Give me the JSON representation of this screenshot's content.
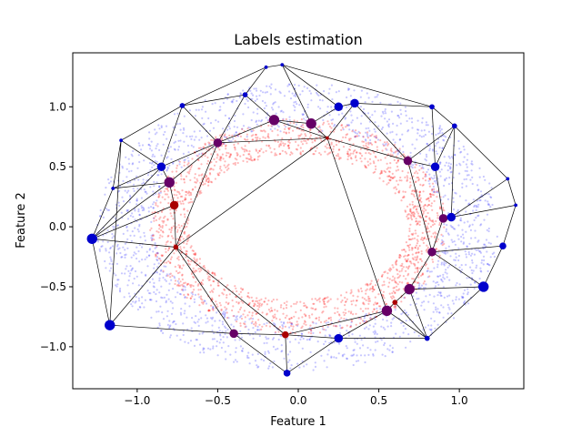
{
  "chart_data": {
    "type": "scatter",
    "title": "Labels estimation",
    "xlabel": "Feature 1",
    "ylabel": "Feature 2",
    "xlim": [
      -1.4,
      1.4
    ],
    "ylim": [
      -1.35,
      1.45
    ],
    "xticks": [
      -1.0,
      -0.5,
      0.0,
      0.5,
      1.0
    ],
    "xtick_labels": [
      "−1.0",
      "−0.5",
      "0.0",
      "0.5",
      "1.0"
    ],
    "yticks": [
      -1.0,
      -0.5,
      0.0,
      0.5,
      1.0
    ],
    "ytick_labels": [
      "−1.0",
      "−0.5",
      "0.0",
      "0.5",
      "1.0"
    ],
    "grid": false,
    "colors": {
      "outer_class": "#0000ff",
      "inner_class": "#ff0000",
      "edges": "#000000"
    },
    "point_clouds": [
      {
        "class": "outer",
        "color": "#0000ff",
        "shape": "ring",
        "center": [
          0.0,
          0.0
        ],
        "radius_x": [
          0.9,
          1.25
        ],
        "radius_y": [
          0.8,
          1.2
        ],
        "count": 1800,
        "alpha": 0.22
      },
      {
        "class": "inner",
        "color": "#ff0000",
        "shape": "ring",
        "center": [
          0.0,
          0.0
        ],
        "radius_x": [
          0.68,
          0.92
        ],
        "radius_y": [
          0.6,
          0.9
        ],
        "count": 1800,
        "alpha": 0.28
      }
    ],
    "nodes": [
      {
        "x": -1.28,
        "y": -0.1,
        "label": "outer",
        "size": 6
      },
      {
        "x": -1.17,
        "y": -0.82,
        "label": "outer",
        "size": 6
      },
      {
        "x": -1.1,
        "y": 0.72,
        "label": "outer",
        "size": 2
      },
      {
        "x": -1.15,
        "y": 0.32,
        "label": "outer",
        "size": 2
      },
      {
        "x": -0.85,
        "y": 0.5,
        "label": "outer",
        "size": 5
      },
      {
        "x": -0.8,
        "y": 0.37,
        "label": "mixed",
        "size": 6
      },
      {
        "x": -0.77,
        "y": 0.18,
        "label": "inner",
        "size": 5
      },
      {
        "x": -0.76,
        "y": -0.17,
        "label": "inner",
        "size": 3
      },
      {
        "x": -0.72,
        "y": 1.01,
        "label": "outer",
        "size": 3
      },
      {
        "x": -0.5,
        "y": 0.7,
        "label": "mixed",
        "size": 5
      },
      {
        "x": -0.4,
        "y": -0.89,
        "label": "mixed",
        "size": 5
      },
      {
        "x": -0.33,
        "y": 1.1,
        "label": "outer",
        "size": 3
      },
      {
        "x": -0.2,
        "y": 1.33,
        "label": "outer",
        "size": 2
      },
      {
        "x": -0.15,
        "y": 0.89,
        "label": "mixed",
        "size": 6
      },
      {
        "x": -0.1,
        "y": 1.35,
        "label": "outer",
        "size": 2
      },
      {
        "x": -0.08,
        "y": -0.9,
        "label": "inner",
        "size": 4
      },
      {
        "x": -0.07,
        "y": -1.22,
        "label": "outer",
        "size": 4
      },
      {
        "x": 0.08,
        "y": 0.86,
        "label": "mixed",
        "size": 6
      },
      {
        "x": 0.18,
        "y": 0.74,
        "label": "inner",
        "size": 2
      },
      {
        "x": 0.25,
        "y": 1.0,
        "label": "outer",
        "size": 5
      },
      {
        "x": 0.25,
        "y": -0.93,
        "label": "outer",
        "size": 5
      },
      {
        "x": 0.35,
        "y": 1.03,
        "label": "outer",
        "size": 5
      },
      {
        "x": 0.55,
        "y": -0.7,
        "label": "mixed",
        "size": 6
      },
      {
        "x": 0.6,
        "y": -0.63,
        "label": "inner",
        "size": 3
      },
      {
        "x": 0.68,
        "y": 0.55,
        "label": "mixed",
        "size": 5
      },
      {
        "x": 0.69,
        "y": -0.52,
        "label": "mixed",
        "size": 6
      },
      {
        "x": 0.8,
        "y": -0.93,
        "label": "outer",
        "size": 3
      },
      {
        "x": 0.85,
        "y": 0.5,
        "label": "outer",
        "size": 5
      },
      {
        "x": 0.83,
        "y": -0.21,
        "label": "mixed",
        "size": 5
      },
      {
        "x": 0.83,
        "y": 1.0,
        "label": "outer",
        "size": 3
      },
      {
        "x": 0.9,
        "y": 0.07,
        "label": "mixed",
        "size": 5
      },
      {
        "x": 0.95,
        "y": 0.08,
        "label": "outer",
        "size": 5
      },
      {
        "x": 0.97,
        "y": 0.84,
        "label": "outer",
        "size": 3
      },
      {
        "x": 1.15,
        "y": -0.5,
        "label": "outer",
        "size": 6
      },
      {
        "x": 1.27,
        "y": -0.16,
        "label": "outer",
        "size": 4
      },
      {
        "x": 1.3,
        "y": 0.4,
        "label": "outer",
        "size": 2
      },
      {
        "x": 1.35,
        "y": 0.18,
        "label": "outer",
        "size": 2
      }
    ],
    "edges": [
      [
        0,
        1
      ],
      [
        0,
        3
      ],
      [
        0,
        4
      ],
      [
        0,
        5
      ],
      [
        0,
        6
      ],
      [
        0,
        7
      ],
      [
        1,
        7
      ],
      [
        1,
        10
      ],
      [
        1,
        2
      ],
      [
        2,
        3
      ],
      [
        2,
        4
      ],
      [
        2,
        8
      ],
      [
        3,
        4
      ],
      [
        3,
        5
      ],
      [
        4,
        5
      ],
      [
        4,
        8
      ],
      [
        4,
        9
      ],
      [
        5,
        6
      ],
      [
        5,
        9
      ],
      [
        6,
        7
      ],
      [
        7,
        9
      ],
      [
        7,
        10
      ],
      [
        7,
        15
      ],
      [
        7,
        18
      ],
      [
        8,
        9
      ],
      [
        8,
        11
      ],
      [
        8,
        12
      ],
      [
        9,
        11
      ],
      [
        9,
        13
      ],
      [
        9,
        18
      ],
      [
        10,
        15
      ],
      [
        10,
        16
      ],
      [
        11,
        12
      ],
      [
        11,
        13
      ],
      [
        12,
        14
      ],
      [
        13,
        17
      ],
      [
        13,
        18
      ],
      [
        14,
        17
      ],
      [
        14,
        19
      ],
      [
        14,
        29
      ],
      [
        15,
        16
      ],
      [
        15,
        20
      ],
      [
        15,
        22
      ],
      [
        16,
        20
      ],
      [
        17,
        18
      ],
      [
        17,
        19
      ],
      [
        18,
        21
      ],
      [
        18,
        22
      ],
      [
        18,
        24
      ],
      [
        19,
        21
      ],
      [
        20,
        22
      ],
      [
        20,
        26
      ],
      [
        21,
        24
      ],
      [
        21,
        29
      ],
      [
        22,
        23
      ],
      [
        22,
        26
      ],
      [
        23,
        25
      ],
      [
        23,
        26
      ],
      [
        24,
        27
      ],
      [
        24,
        28
      ],
      [
        24,
        32
      ],
      [
        25,
        28
      ],
      [
        25,
        33
      ],
      [
        25,
        26
      ],
      [
        26,
        33
      ],
      [
        27,
        29
      ],
      [
        27,
        30
      ],
      [
        27,
        32
      ],
      [
        28,
        30
      ],
      [
        28,
        33
      ],
      [
        28,
        34
      ],
      [
        29,
        32
      ],
      [
        30,
        31
      ],
      [
        31,
        32
      ],
      [
        31,
        35
      ],
      [
        31,
        36
      ],
      [
        32,
        35
      ],
      [
        33,
        34
      ],
      [
        34,
        36
      ],
      [
        35,
        36
      ]
    ]
  }
}
